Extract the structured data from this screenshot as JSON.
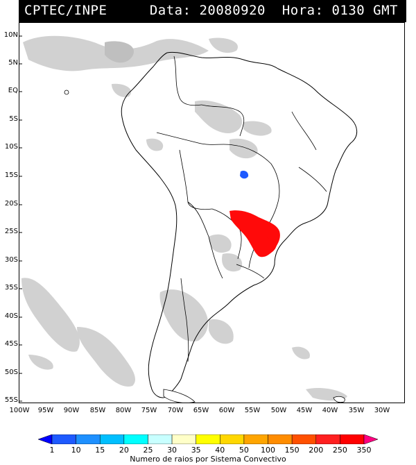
{
  "header": {
    "source": "CPTEC/INPE",
    "date_time": "Data: 20080920  Hora: 0130 GMT"
  },
  "map": {
    "lat_ticks": [
      "10N",
      "5N",
      "EQ",
      "5S",
      "10S",
      "15S",
      "20S",
      "25S",
      "30S",
      "35S",
      "40S",
      "45S",
      "50S",
      "55S"
    ],
    "lon_ticks": [
      "100W",
      "95W",
      "90W",
      "85W",
      "80W",
      "75W",
      "70W",
      "65W",
      "60W",
      "55W",
      "50W",
      "45W",
      "40W",
      "35W",
      "30W"
    ],
    "colors": {
      "cloud": "#c9c9c9",
      "coast": "#000000",
      "lightning_high": "#ff0a0a",
      "lightning_low": "#1e5aff"
    }
  },
  "legend": {
    "caption": "Numero de raios por Sistema Convectivo",
    "labels": [
      "1",
      "10",
      "15",
      "20",
      "25",
      "30",
      "35",
      "40",
      "50",
      "100",
      "150",
      "200",
      "250",
      "350"
    ],
    "colors": [
      "#0000ff",
      "#1e5aff",
      "#1e90ff",
      "#00bfff",
      "#00ffff",
      "#c8ffff",
      "#ffffc8",
      "#ffff00",
      "#ffd700",
      "#ffa500",
      "#ff8c00",
      "#ff5000",
      "#ff2020",
      "#ff0000",
      "#ff0080"
    ]
  }
}
